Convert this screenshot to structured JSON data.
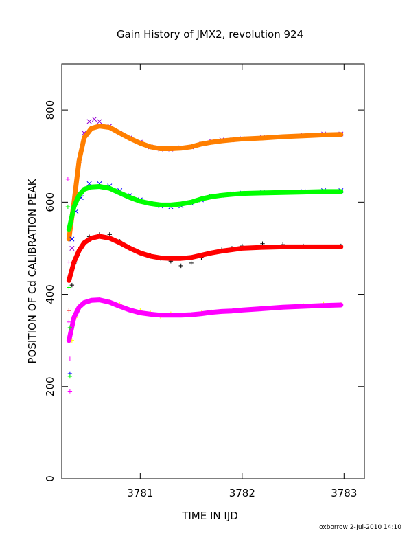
{
  "chart_data": {
    "type": "scatter",
    "title": "Gain History of JMX2, revolution 924",
    "xlabel": "TIME IN IJD",
    "ylabel": "POSITION OF Cd CALIBRATION PEAK",
    "xlim": [
      3780.23,
      3783.2
    ],
    "ylim": [
      0,
      900
    ],
    "x_ticks": [
      {
        "value": 3781,
        "label": "3781"
      },
      {
        "value": 3782,
        "label": "3782"
      },
      {
        "value": 3783,
        "label": "3783"
      }
    ],
    "y_ticks": [
      {
        "value": 0,
        "label": "0"
      },
      {
        "value": 200,
        "label": "200"
      },
      {
        "value": 400,
        "label": "400"
      },
      {
        "value": 600,
        "label": "600"
      },
      {
        "value": 800,
        "label": "800"
      }
    ],
    "grid": false,
    "footer": "oxborrow  2-Jul-2010 14:10",
    "series": [
      {
        "marker": "x",
        "color": "#9400d3",
        "points": [
          [
            3780.33,
            500
          ],
          [
            3780.37,
            600
          ],
          [
            3780.4,
            690
          ],
          [
            3780.45,
            750
          ],
          [
            3780.5,
            775
          ],
          [
            3780.55,
            780
          ],
          [
            3780.6,
            775
          ],
          [
            3780.7,
            765
          ],
          [
            3780.8,
            750
          ],
          [
            3780.9,
            740
          ],
          [
            3781.0,
            730
          ],
          [
            3781.1,
            720
          ],
          [
            3781.2,
            715
          ],
          [
            3781.3,
            715
          ],
          [
            3781.4,
            718
          ],
          [
            3781.5,
            720
          ],
          [
            3781.6,
            728
          ],
          [
            3781.7,
            732
          ],
          [
            3781.8,
            735
          ],
          [
            3781.9,
            735
          ],
          [
            3782.0,
            738
          ],
          [
            3782.2,
            740
          ],
          [
            3782.4,
            742
          ],
          [
            3782.6,
            745
          ],
          [
            3782.8,
            748
          ],
          [
            3782.97,
            748
          ]
        ]
      },
      {
        "marker": "fit",
        "color": "#ff7f00",
        "points": [
          [
            3780.3,
            520
          ],
          [
            3780.35,
            600
          ],
          [
            3780.4,
            690
          ],
          [
            3780.45,
            740
          ],
          [
            3780.52,
            760
          ],
          [
            3780.6,
            765
          ],
          [
            3780.7,
            762
          ],
          [
            3780.8,
            750
          ],
          [
            3780.9,
            738
          ],
          [
            3781.0,
            728
          ],
          [
            3781.1,
            720
          ],
          [
            3781.2,
            716
          ],
          [
            3781.3,
            716
          ],
          [
            3781.4,
            717
          ],
          [
            3781.5,
            720
          ],
          [
            3781.6,
            726
          ],
          [
            3781.7,
            730
          ],
          [
            3781.8,
            733
          ],
          [
            3781.9,
            735
          ],
          [
            3782.0,
            737
          ],
          [
            3782.2,
            739
          ],
          [
            3782.4,
            742
          ],
          [
            3782.6,
            744
          ],
          [
            3782.8,
            746
          ],
          [
            3782.97,
            747
          ]
        ]
      },
      {
        "marker": "x",
        "color": "#0000ff",
        "points": [
          [
            3780.33,
            520
          ],
          [
            3780.37,
            580
          ],
          [
            3780.42,
            610
          ],
          [
            3780.5,
            640
          ],
          [
            3780.6,
            640
          ],
          [
            3780.7,
            635
          ],
          [
            3780.8,
            625
          ],
          [
            3780.9,
            615
          ],
          [
            3781.0,
            605
          ],
          [
            3781.1,
            598
          ],
          [
            3781.2,
            592
          ],
          [
            3781.3,
            590
          ],
          [
            3781.4,
            592
          ],
          [
            3781.5,
            598
          ],
          [
            3781.6,
            605
          ],
          [
            3781.7,
            612
          ],
          [
            3781.8,
            615
          ],
          [
            3781.9,
            618
          ],
          [
            3782.0,
            620
          ],
          [
            3782.2,
            622
          ],
          [
            3782.4,
            622
          ],
          [
            3782.6,
            623
          ],
          [
            3782.8,
            625
          ],
          [
            3782.97,
            625
          ]
        ]
      },
      {
        "marker": "fit",
        "color": "#00ff00",
        "points": [
          [
            3780.3,
            540
          ],
          [
            3780.35,
            590
          ],
          [
            3780.4,
            615
          ],
          [
            3780.45,
            628
          ],
          [
            3780.52,
            633
          ],
          [
            3780.6,
            634
          ],
          [
            3780.7,
            630
          ],
          [
            3780.8,
            620
          ],
          [
            3780.9,
            610
          ],
          [
            3781.0,
            602
          ],
          [
            3781.1,
            597
          ],
          [
            3781.2,
            594
          ],
          [
            3781.3,
            594
          ],
          [
            3781.4,
            596
          ],
          [
            3781.5,
            600
          ],
          [
            3781.6,
            607
          ],
          [
            3781.7,
            612
          ],
          [
            3781.8,
            615
          ],
          [
            3781.9,
            617
          ],
          [
            3782.0,
            619
          ],
          [
            3782.2,
            620
          ],
          [
            3782.4,
            621
          ],
          [
            3782.6,
            622
          ],
          [
            3782.8,
            623
          ],
          [
            3782.97,
            623
          ]
        ]
      },
      {
        "marker": "+",
        "color": "#000000",
        "points": [
          [
            3780.33,
            420
          ],
          [
            3780.37,
            470
          ],
          [
            3780.42,
            500
          ],
          [
            3780.5,
            525
          ],
          [
            3780.6,
            530
          ],
          [
            3780.7,
            530
          ],
          [
            3780.8,
            515
          ],
          [
            3780.9,
            500
          ],
          [
            3781.0,
            490
          ],
          [
            3781.1,
            485
          ],
          [
            3781.2,
            478
          ],
          [
            3781.3,
            472
          ],
          [
            3781.4,
            462
          ],
          [
            3781.5,
            468
          ],
          [
            3781.6,
            480
          ],
          [
            3781.7,
            490
          ],
          [
            3781.8,
            497
          ],
          [
            3781.9,
            500
          ],
          [
            3782.0,
            505
          ],
          [
            3782.2,
            510
          ],
          [
            3782.4,
            508
          ],
          [
            3782.6,
            505
          ],
          [
            3782.8,
            503
          ],
          [
            3782.97,
            505
          ]
        ]
      },
      {
        "marker": "fit",
        "color": "#ff0000",
        "points": [
          [
            3780.3,
            430
          ],
          [
            3780.35,
            470
          ],
          [
            3780.4,
            495
          ],
          [
            3780.45,
            512
          ],
          [
            3780.52,
            522
          ],
          [
            3780.6,
            526
          ],
          [
            3780.7,
            522
          ],
          [
            3780.8,
            512
          ],
          [
            3780.9,
            500
          ],
          [
            3781.0,
            490
          ],
          [
            3781.1,
            483
          ],
          [
            3781.2,
            479
          ],
          [
            3781.3,
            478
          ],
          [
            3781.4,
            478
          ],
          [
            3781.5,
            480
          ],
          [
            3781.6,
            485
          ],
          [
            3781.7,
            490
          ],
          [
            3781.8,
            494
          ],
          [
            3781.9,
            497
          ],
          [
            3782.0,
            500
          ],
          [
            3782.2,
            502
          ],
          [
            3782.4,
            503
          ],
          [
            3782.6,
            503
          ],
          [
            3782.8,
            503
          ],
          [
            3782.97,
            503
          ]
        ]
      },
      {
        "marker": "+",
        "color": "#ffff00",
        "points": [
          [
            3780.33,
            300
          ],
          [
            3780.37,
            350
          ],
          [
            3780.42,
            375
          ],
          [
            3780.5,
            385
          ],
          [
            3780.6,
            390
          ],
          [
            3780.7,
            385
          ],
          [
            3780.8,
            378
          ],
          [
            3780.9,
            370
          ],
          [
            3781.0,
            365
          ],
          [
            3781.1,
            360
          ],
          [
            3781.2,
            352
          ],
          [
            3781.3,
            358
          ],
          [
            3781.4,
            355
          ],
          [
            3781.5,
            357
          ],
          [
            3781.6,
            360
          ],
          [
            3781.7,
            362
          ],
          [
            3781.8,
            363
          ],
          [
            3781.9,
            364
          ],
          [
            3782.0,
            366
          ],
          [
            3782.2,
            370
          ],
          [
            3782.4,
            372
          ],
          [
            3782.6,
            376
          ],
          [
            3782.8,
            380
          ],
          [
            3782.97,
            378
          ]
        ]
      },
      {
        "marker": "fit",
        "color": "#ff00ff",
        "points": [
          [
            3780.3,
            300
          ],
          [
            3780.35,
            350
          ],
          [
            3780.4,
            372
          ],
          [
            3780.45,
            382
          ],
          [
            3780.52,
            387
          ],
          [
            3780.6,
            388
          ],
          [
            3780.7,
            383
          ],
          [
            3780.8,
            374
          ],
          [
            3780.9,
            366
          ],
          [
            3781.0,
            360
          ],
          [
            3781.1,
            357
          ],
          [
            3781.2,
            355
          ],
          [
            3781.3,
            355
          ],
          [
            3781.4,
            355
          ],
          [
            3781.5,
            356
          ],
          [
            3781.6,
            358
          ],
          [
            3781.7,
            361
          ],
          [
            3781.8,
            363
          ],
          [
            3781.9,
            364
          ],
          [
            3782.0,
            366
          ],
          [
            3782.2,
            369
          ],
          [
            3782.4,
            372
          ],
          [
            3782.6,
            374
          ],
          [
            3782.8,
            376
          ],
          [
            3782.97,
            377
          ]
        ]
      }
    ],
    "outliers": [
      {
        "x": 3780.29,
        "y": 650,
        "color": "#ff00ff"
      },
      {
        "x": 3780.29,
        "y": 590,
        "color": "#00ff00"
      },
      {
        "x": 3780.3,
        "y": 470,
        "color": "#ff00ff"
      },
      {
        "x": 3780.3,
        "y": 415,
        "color": "#00ff00"
      },
      {
        "x": 3780.3,
        "y": 365,
        "color": "#ff0000"
      },
      {
        "x": 3780.3,
        "y": 340,
        "color": "#ff00ff"
      },
      {
        "x": 3780.31,
        "y": 328,
        "color": "#00ff00"
      },
      {
        "x": 3780.31,
        "y": 260,
        "color": "#ff00ff"
      },
      {
        "x": 3780.31,
        "y": 228,
        "color": "#0000ff"
      },
      {
        "x": 3780.31,
        "y": 222,
        "color": "#00ff00"
      },
      {
        "x": 3780.31,
        "y": 190,
        "color": "#ff00ff"
      }
    ]
  }
}
